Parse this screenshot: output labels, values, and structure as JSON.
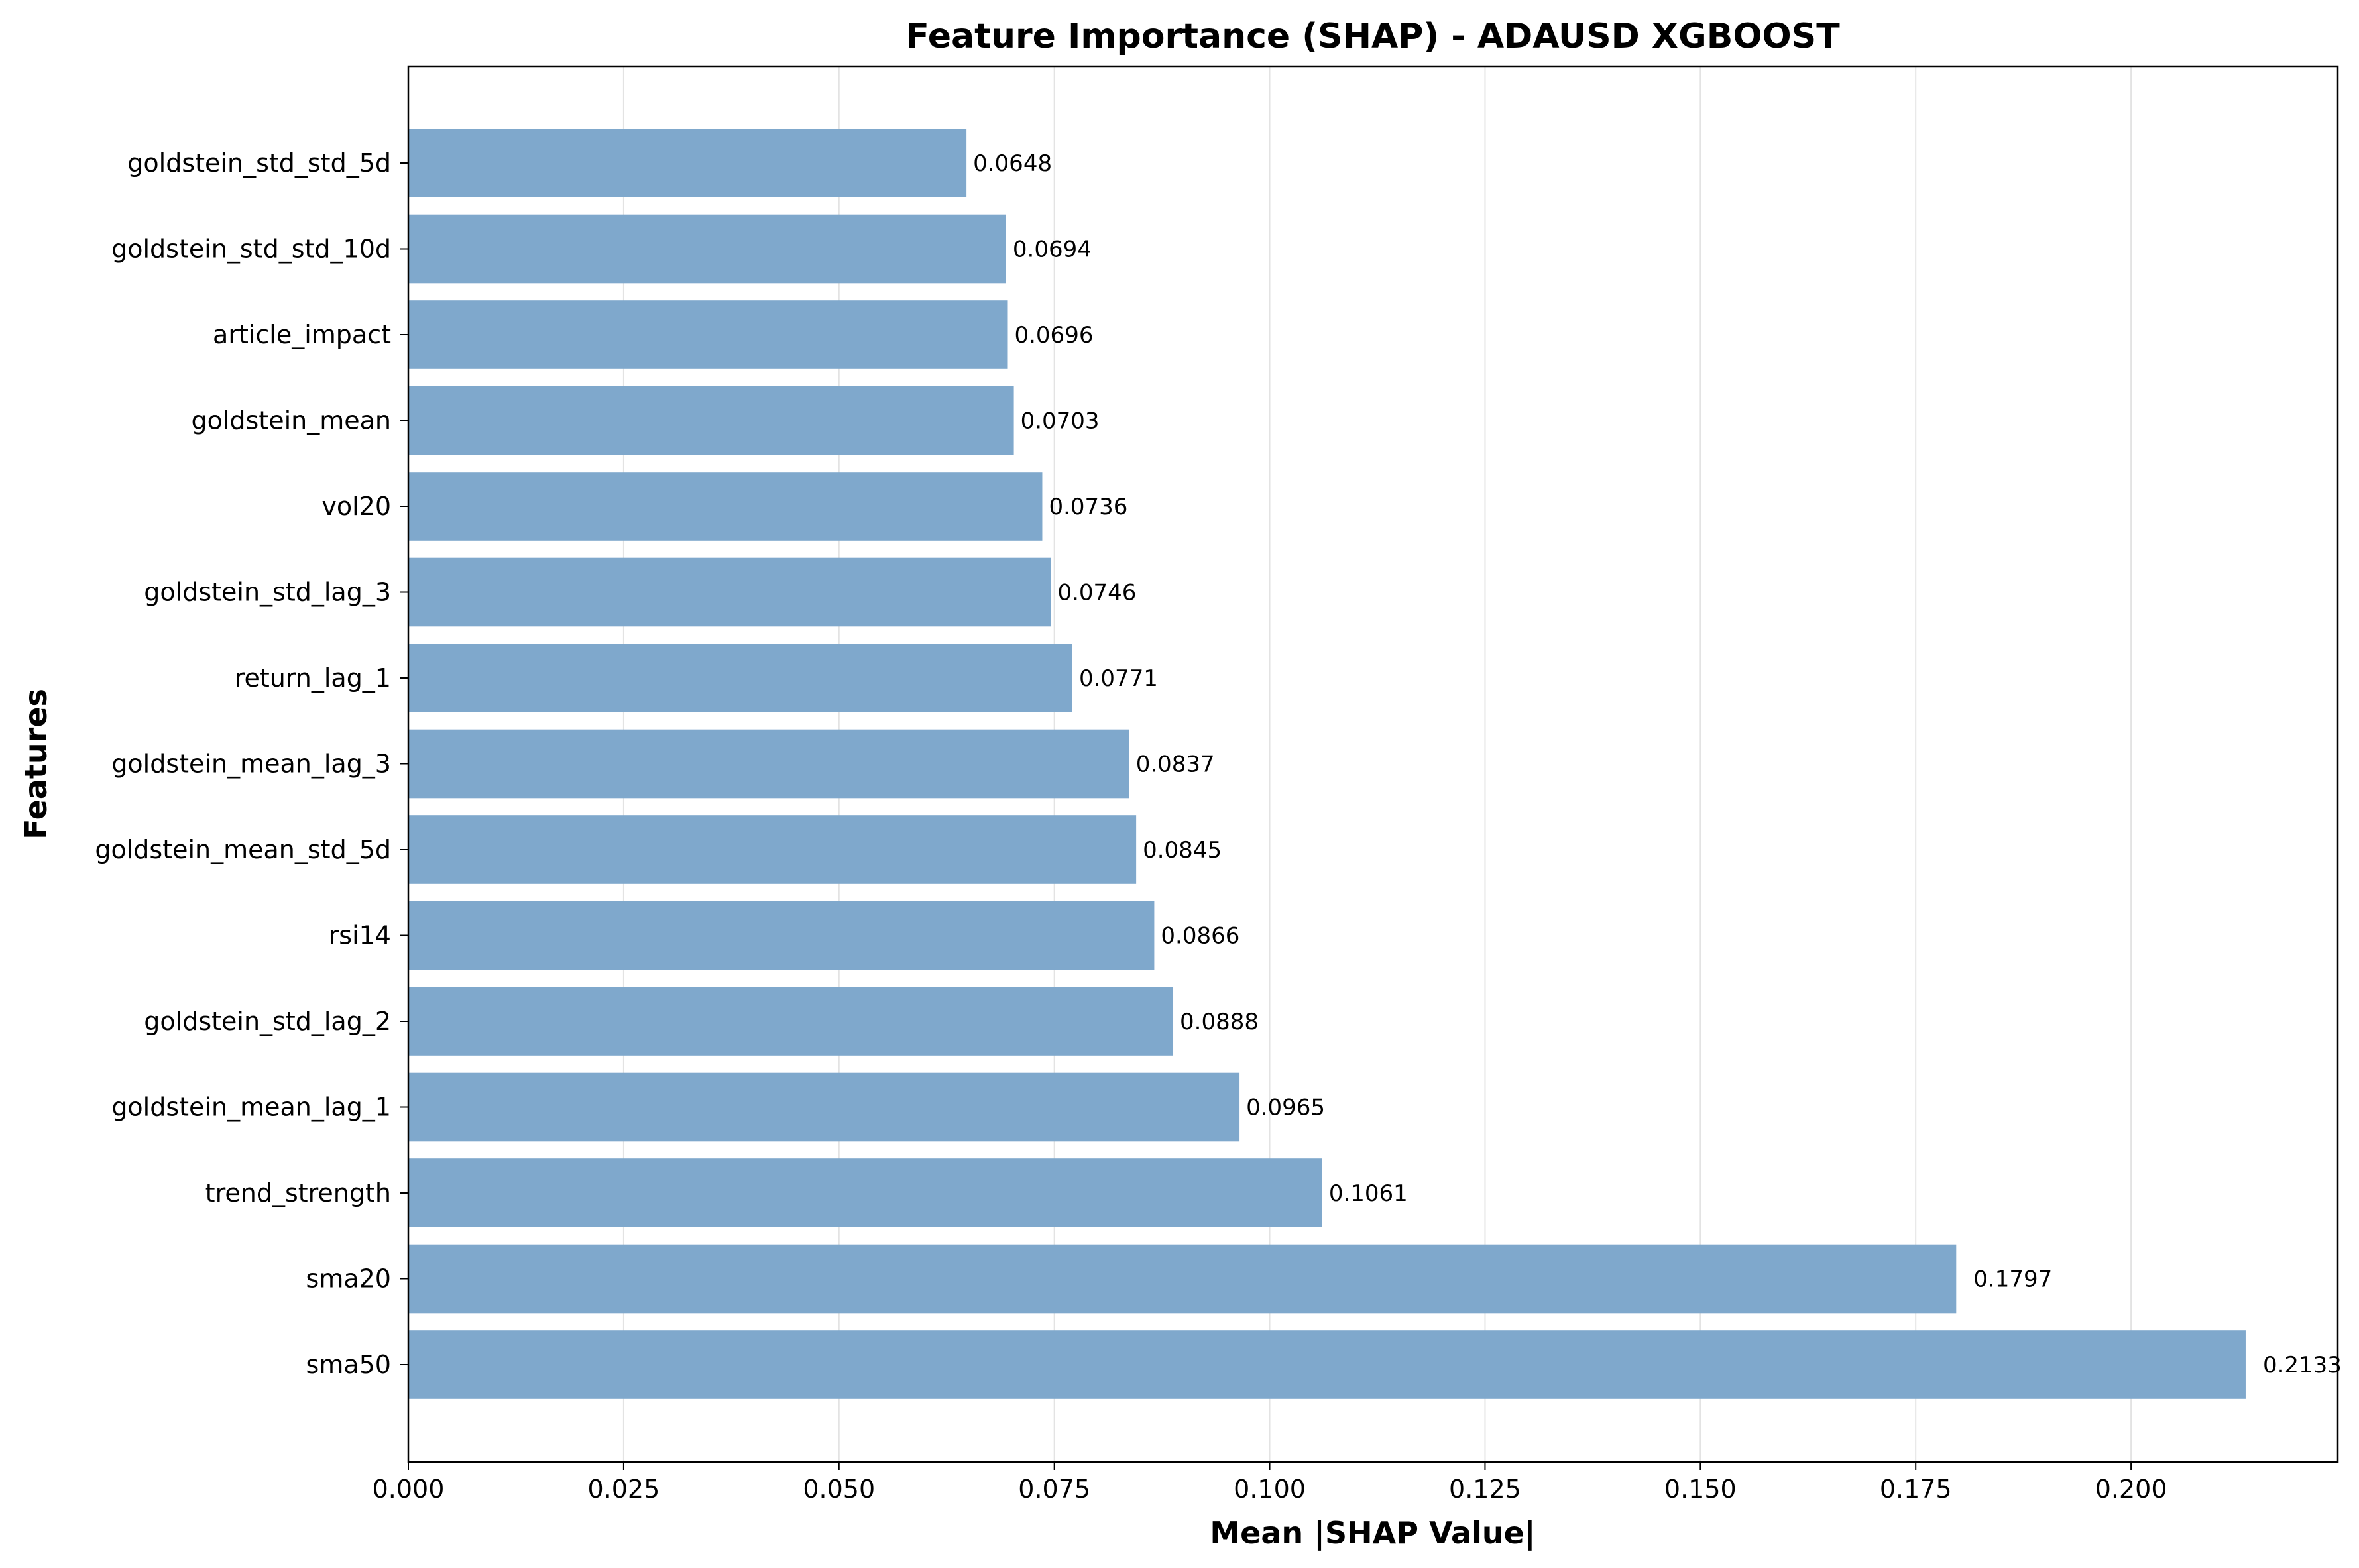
{
  "chart_data": {
    "type": "bar",
    "orientation": "horizontal",
    "title": "Feature Importance (SHAP) - ADAUSD XGBOOST",
    "xlabel": "Mean |SHAP Value|",
    "ylabel": "Features",
    "xlim": [
      0,
      0.224
    ],
    "xticks": [
      "0.000",
      "0.025",
      "0.050",
      "0.075",
      "0.100",
      "0.125",
      "0.150",
      "0.175",
      "0.200"
    ],
    "grid": "vertical",
    "bar_color": "#7fa8cc",
    "categories": [
      "goldstein_std_std_5d",
      "goldstein_std_std_10d",
      "article_impact",
      "goldstein_mean",
      "vol20",
      "goldstein_std_lag_3",
      "return_lag_1",
      "goldstein_mean_lag_3",
      "goldstein_mean_std_5d",
      "rsi14",
      "goldstein_std_lag_2",
      "goldstein_mean_lag_1",
      "trend_strength",
      "sma20",
      "sma50"
    ],
    "values": [
      0.0648,
      0.0694,
      0.0696,
      0.0703,
      0.0736,
      0.0746,
      0.0771,
      0.0837,
      0.0845,
      0.0866,
      0.0888,
      0.0965,
      0.1061,
      0.1797,
      0.2133
    ],
    "value_labels": [
      "0.0648",
      "0.0694",
      "0.0696",
      "0.0703",
      "0.0736",
      "0.0746",
      "0.0771",
      "0.0837",
      "0.0845",
      "0.0866",
      "0.0888",
      "0.0965",
      "0.1061",
      "0.1797",
      "0.2133"
    ]
  }
}
